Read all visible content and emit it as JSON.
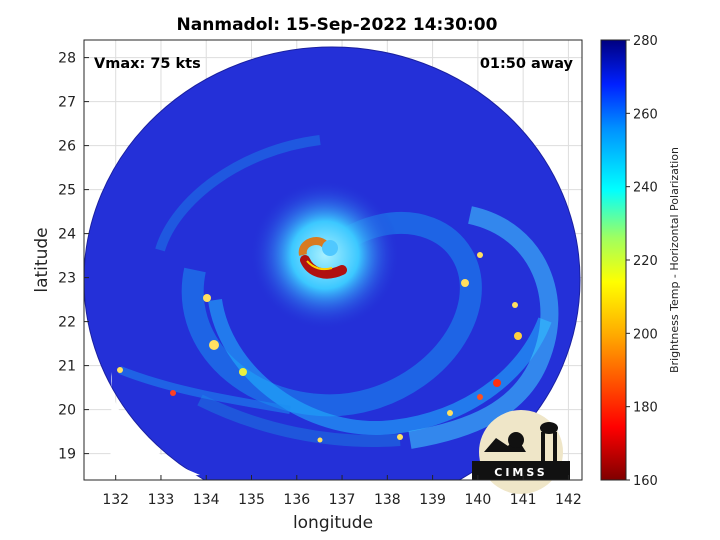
{
  "title": "Nanmadol: 15-Sep-2022 14:30:00",
  "vmax_label": "Vmax: 75 kts",
  "time_label": "01:50 away",
  "xlabel": "longitude",
  "ylabel": "latitude",
  "colorbar_label": "Brightness Temp - Horizontal Polarization",
  "logo_text": "CIMSS",
  "x_ticks": [
    "132",
    "133",
    "134",
    "135",
    "136",
    "137",
    "138",
    "139",
    "140",
    "141",
    "142"
  ],
  "y_ticks": [
    "19",
    "20",
    "21",
    "22",
    "23",
    "24",
    "25",
    "26",
    "27",
    "28"
  ],
  "colorbar_ticks": [
    "280",
    "260",
    "240",
    "220",
    "200",
    "180",
    "160"
  ],
  "colors": {
    "background": "#2430d8",
    "eyewall": "#b01010",
    "outline": "#000000"
  },
  "map_data": {
    "type": "satellite_swath",
    "xlim": [
      131.3,
      142.3
    ],
    "ylim": [
      18.4,
      28.4
    ],
    "colorbar_range": [
      160,
      280
    ],
    "grid": true
  }
}
